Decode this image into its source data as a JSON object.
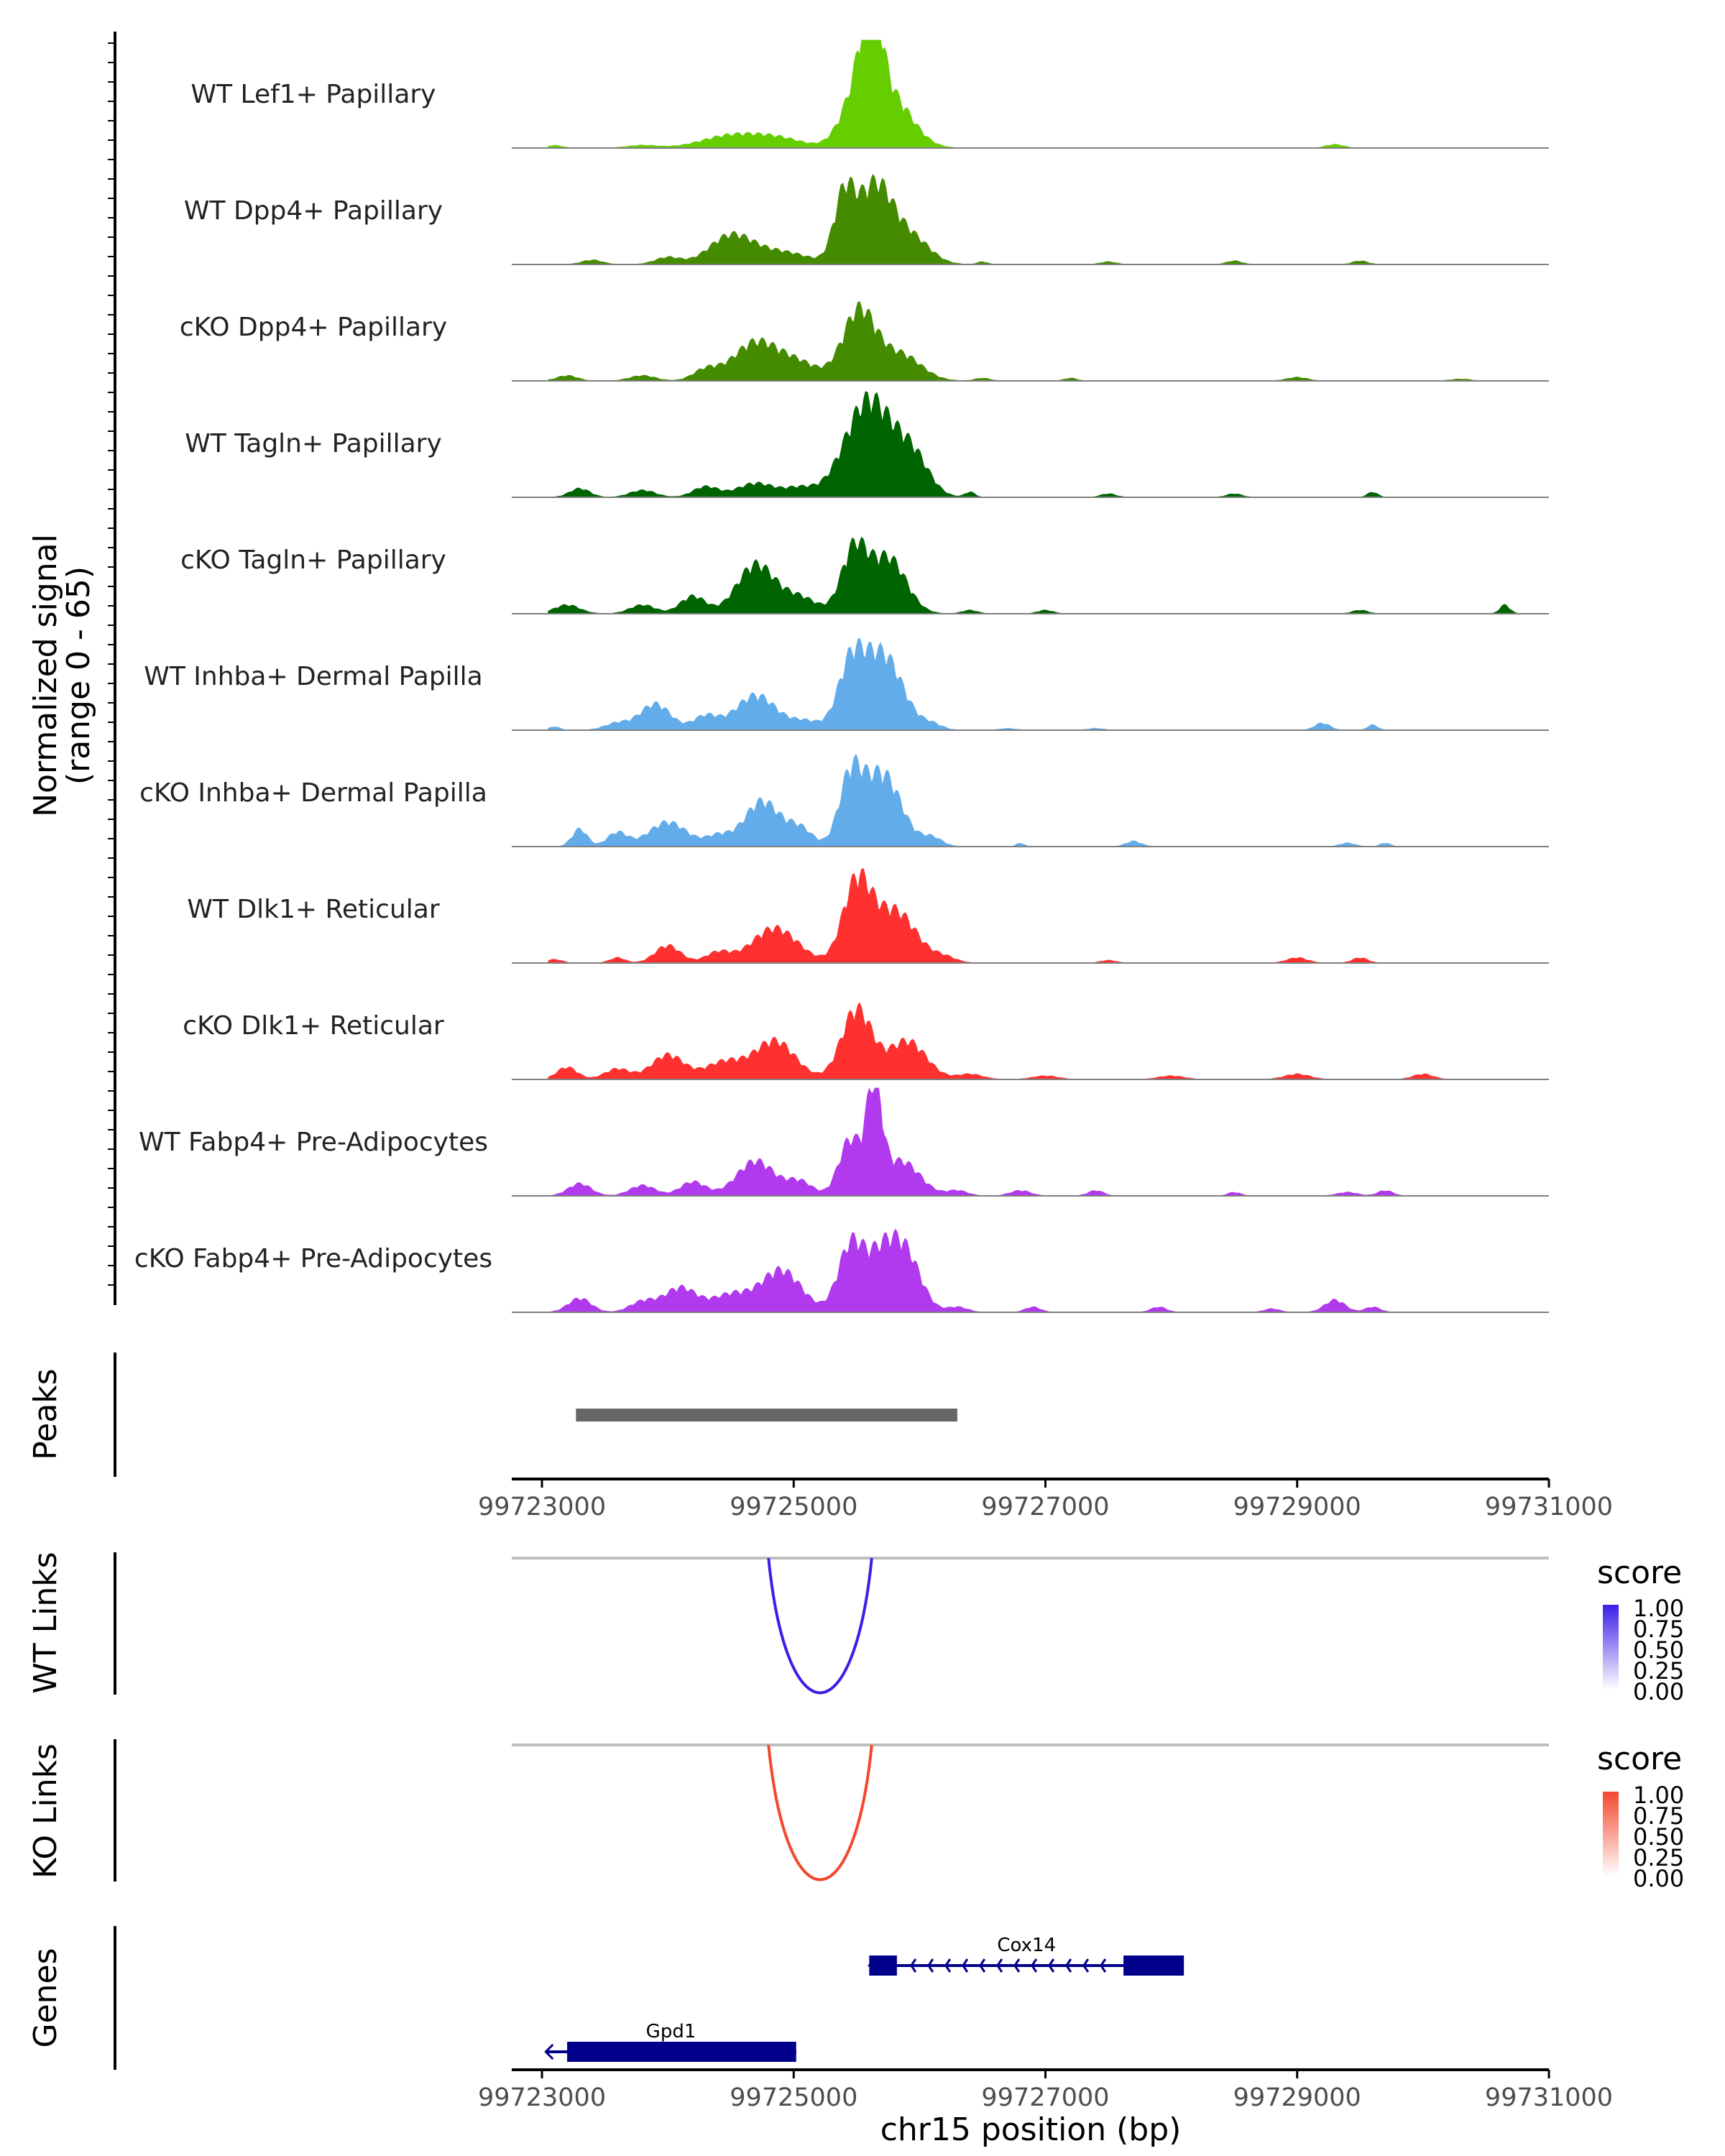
{
  "chart_data": {
    "type": "area",
    "title": "",
    "chromosome": "chr15",
    "xlabel": "chr15 position (bp)",
    "xlim": [
      99722760,
      99731000
    ],
    "ticks": [
      "99723000",
      "99725000",
      "99727000",
      "99729000",
      "99731000"
    ],
    "tick_values": [
      99723000,
      99725000,
      99727000,
      99729000,
      99731000
    ],
    "ylabel_line1": "Normalized signal",
    "ylabel_line2": "(range 0 - 65)",
    "ylim": [
      0,
      65
    ],
    "coverage": {
      "tracks": [
        {
          "name": "WT Lef1+ Papillary",
          "color": "#66CD00",
          "peaks": [
            [
              99723100,
              1.5,
              60
            ],
            [
              99723800,
              1.5,
              120
            ],
            [
              99724500,
              7,
              230
            ],
            [
              99724880,
              5,
              200
            ],
            [
              99725550,
              40,
              140
            ],
            [
              99725620,
              46,
              70
            ],
            [
              99725800,
              24,
              160
            ],
            [
              99729300,
              2,
              70
            ]
          ]
        },
        {
          "name": "WT Dpp4+ Papillary",
          "color": "#458B00",
          "peaks": [
            [
              99723400,
              2.5,
              80
            ],
            [
              99724000,
              4,
              100
            ],
            [
              99724500,
              16,
              170
            ],
            [
              99724900,
              7,
              220
            ],
            [
              99725400,
              36,
              80
            ],
            [
              99725650,
              46,
              140
            ],
            [
              99725950,
              14,
              140
            ],
            [
              99726500,
              1.5,
              40
            ],
            [
              99727500,
              1.5,
              60
            ],
            [
              99728500,
              2,
              60
            ],
            [
              99729500,
              2,
              60
            ]
          ]
        },
        {
          "name": "cKO Dpp4+ Papillary",
          "color": "#458B00",
          "peaks": [
            [
              99723200,
              3,
              80
            ],
            [
              99723800,
              3,
              100
            ],
            [
              99724300,
              6,
              100
            ],
            [
              99724700,
              22,
              180
            ],
            [
              99725050,
              9,
              160
            ],
            [
              99725520,
              40,
              130
            ],
            [
              99725850,
              15,
              160
            ],
            [
              99726500,
              1.5,
              60
            ],
            [
              99727200,
              1.5,
              50
            ],
            [
              99729000,
              2,
              80
            ],
            [
              99730300,
              1,
              80
            ]
          ]
        },
        {
          "name": "WT Tagln+ Papillary",
          "color": "#006400",
          "peaks": [
            [
              99723300,
              5,
              80
            ],
            [
              99723800,
              4,
              100
            ],
            [
              99724300,
              6,
              100
            ],
            [
              99724700,
              8,
              150
            ],
            [
              99725050,
              5,
              120
            ],
            [
              99725600,
              56,
              190
            ],
            [
              99725950,
              20,
              130
            ],
            [
              99726400,
              3,
              40
            ],
            [
              99727500,
              2,
              60
            ],
            [
              99728500,
              2,
              60
            ],
            [
              99729600,
              3,
              40
            ]
          ]
        },
        {
          "name": "cKO Tagln+ Papillary",
          "color": "#006400",
          "peaks": [
            [
              99723200,
              5,
              100
            ],
            [
              99723800,
              5,
              100
            ],
            [
              99724200,
              10,
              100
            ],
            [
              99724700,
              28,
              150
            ],
            [
              99725050,
              9,
              140
            ],
            [
              99725480,
              36,
              100
            ],
            [
              99725750,
              32,
              140
            ],
            [
              99726400,
              2,
              60
            ],
            [
              99727000,
              2,
              60
            ],
            [
              99729500,
              2,
              60
            ],
            [
              99730650,
              5,
              40
            ]
          ]
        },
        {
          "name": "WT Inhba+ Dermal Papilla",
          "color": "#63ACEA",
          "peaks": [
            [
              99723100,
              2,
              40
            ],
            [
              99723600,
              4,
              100
            ],
            [
              99723900,
              15,
              120
            ],
            [
              99724300,
              8,
              100
            ],
            [
              99724700,
              20,
              160
            ],
            [
              99725100,
              5,
              120
            ],
            [
              99725450,
              32,
              100
            ],
            [
              99725700,
              44,
              160
            ],
            [
              99726100,
              3,
              80
            ],
            [
              99726700,
              1,
              60
            ],
            [
              99727400,
              1,
              60
            ],
            [
              99729200,
              4,
              60
            ],
            [
              99729600,
              3,
              40
            ]
          ]
        },
        {
          "name": "cKO Inhba+ Dermal Papilla",
          "color": "#63ACEA",
          "peaks": [
            [
              99723300,
              10,
              60
            ],
            [
              99723600,
              8,
              80
            ],
            [
              99724000,
              14,
              150
            ],
            [
              99724400,
              6,
              100
            ],
            [
              99724750,
              26,
              140
            ],
            [
              99725050,
              10,
              100
            ],
            [
              99725450,
              36,
              90
            ],
            [
              99725700,
              42,
              150
            ],
            [
              99726100,
              5,
              80
            ],
            [
              99726800,
              2,
              30
            ],
            [
              99727700,
              3,
              60
            ],
            [
              99729400,
              2,
              60
            ],
            [
              99729700,
              2,
              40
            ]
          ]
        },
        {
          "name": "WT Dlk1+ Reticular",
          "color": "#FF3030",
          "peaks": [
            [
              99723100,
              2,
              60
            ],
            [
              99723600,
              3,
              60
            ],
            [
              99724000,
              10,
              100
            ],
            [
              99724400,
              6,
              100
            ],
            [
              99724850,
              20,
              180
            ],
            [
              99725500,
              44,
              110
            ],
            [
              99725800,
              30,
              170
            ],
            [
              99726200,
              3,
              90
            ],
            [
              99727500,
              1.5,
              60
            ],
            [
              99729000,
              3,
              80
            ],
            [
              99729500,
              3,
              60
            ]
          ]
        },
        {
          "name": "cKO Dlk1+ Reticular",
          "color": "#FF3030",
          "peaks": [
            [
              99723200,
              7,
              80
            ],
            [
              99723600,
              6,
              100
            ],
            [
              99724000,
              14,
              130
            ],
            [
              99724450,
              10,
              150
            ],
            [
              99724850,
              22,
              160
            ],
            [
              99725500,
              40,
              120
            ],
            [
              99725900,
              22,
              150
            ],
            [
              99726400,
              3,
              100
            ],
            [
              99727000,
              2,
              100
            ],
            [
              99728000,
              2,
              100
            ],
            [
              99729000,
              3,
              100
            ],
            [
              99730000,
              3,
              80
            ]
          ]
        },
        {
          "name": "WT Fabp4+ Pre-Adipocytes",
          "color": "#B23AEE",
          "peaks": [
            [
              99723300,
              7,
              90
            ],
            [
              99723800,
              6,
              100
            ],
            [
              99724200,
              8,
              100
            ],
            [
              99724700,
              20,
              150
            ],
            [
              99725050,
              8,
              100
            ],
            [
              99725450,
              32,
              90
            ],
            [
              99725640,
              58,
              60
            ],
            [
              99725850,
              20,
              150
            ],
            [
              99726300,
              3,
              80
            ],
            [
              99726800,
              3,
              80
            ],
            [
              99727400,
              3,
              60
            ],
            [
              99728500,
              2,
              50
            ],
            [
              99729400,
              2,
              80
            ],
            [
              99729700,
              3,
              60
            ]
          ]
        },
        {
          "name": "cKO Fabp4+ Pre-Adipocytes",
          "color": "#B23AEE",
          "peaks": [
            [
              99723300,
              8,
              90
            ],
            [
              99723800,
              6,
              100
            ],
            [
              99724100,
              14,
              130
            ],
            [
              99724500,
              10,
              150
            ],
            [
              99724900,
              24,
              160
            ],
            [
              99725450,
              36,
              100
            ],
            [
              99725700,
              32,
              130
            ],
            [
              99725900,
              28,
              120
            ],
            [
              99726300,
              3,
              80
            ],
            [
              99726900,
              3,
              60
            ],
            [
              99727900,
              3,
              60
            ],
            [
              99728800,
              2,
              60
            ],
            [
              99729300,
              7,
              80
            ],
            [
              99729600,
              3,
              60
            ]
          ]
        }
      ]
    },
    "peaks_track": {
      "label": "Peaks",
      "color": "#666666",
      "regions": [
        [
          99723270,
          99726300
        ]
      ]
    },
    "links": [
      {
        "label": "WT Links",
        "start": 99724800,
        "end": 99725620,
        "score": 1.0,
        "color": "#3B1FE6",
        "legend_title": "score",
        "legend_low": "#FFFFFF",
        "legend_high": "#3B1FE6"
      },
      {
        "label": "KO Links",
        "start": 99724800,
        "end": 99725620,
        "score": 1.0,
        "color": "#F4472E",
        "legend_title": "score",
        "legend_low": "#FFFFFF",
        "legend_high": "#F4472E"
      }
    ],
    "legend_values": [
      "1.00",
      "0.75",
      "0.50",
      "0.25",
      "0.00"
    ],
    "genes": {
      "label": "Genes",
      "color": "#00008B",
      "items": [
        {
          "name": "Cox14",
          "start": 99725600,
          "end": 99728100,
          "strand": "-",
          "exons": [
            [
              99725600,
              99725820
            ],
            [
              99727620,
              99728100
            ]
          ]
        },
        {
          "name": "Gpd1",
          "start": 99723030,
          "end": 99725020,
          "strand": "-",
          "exons": [
            [
              99723200,
              99725020
            ]
          ]
        }
      ]
    }
  }
}
